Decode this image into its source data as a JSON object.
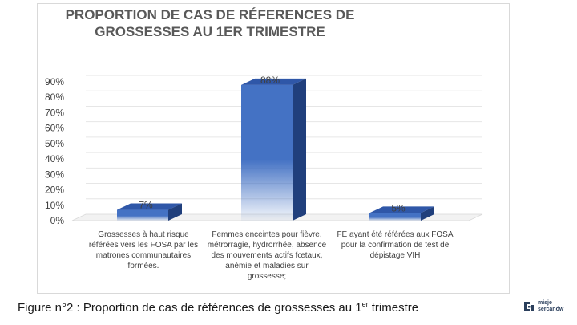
{
  "chart_data": {
    "type": "bar",
    "title": "PROPORTION DE CAS DE RÉFERENCES DE\nGROSSESSES AU 1ER TRIMESTRE",
    "categories": [
      "Grossesses à haut risque référées vers les FOSA par les matrones communautaires formées.",
      "Femmes enceintes pour fièvre, métrorragie, hydrorrhée, absence des mouvements actifs fœtaux, anémie et maladies sur grossesse;",
      "FE ayant été référées aux FOSA pour la confirmation de test de dépistage VIH"
    ],
    "values": [
      7,
      88,
      5
    ],
    "data_labels": [
      "7%",
      "88%",
      "5%"
    ],
    "ylim": [
      0,
      90
    ],
    "yticks": [
      "0%",
      "10%",
      "20%",
      "30%",
      "40%",
      "50%",
      "60%",
      "70%",
      "80%",
      "90%"
    ],
    "bar_color": "#4472c4",
    "grid": true
  },
  "caption": {
    "prefix": "Figure n°2 : Proportion de cas de références de grossesses au 1",
    "sup": "er",
    "suffix": " trimestre"
  },
  "logo": {
    "text": "misje\nsercanów",
    "icon": "logo-mark-icon",
    "color": "#2b3f5c"
  }
}
